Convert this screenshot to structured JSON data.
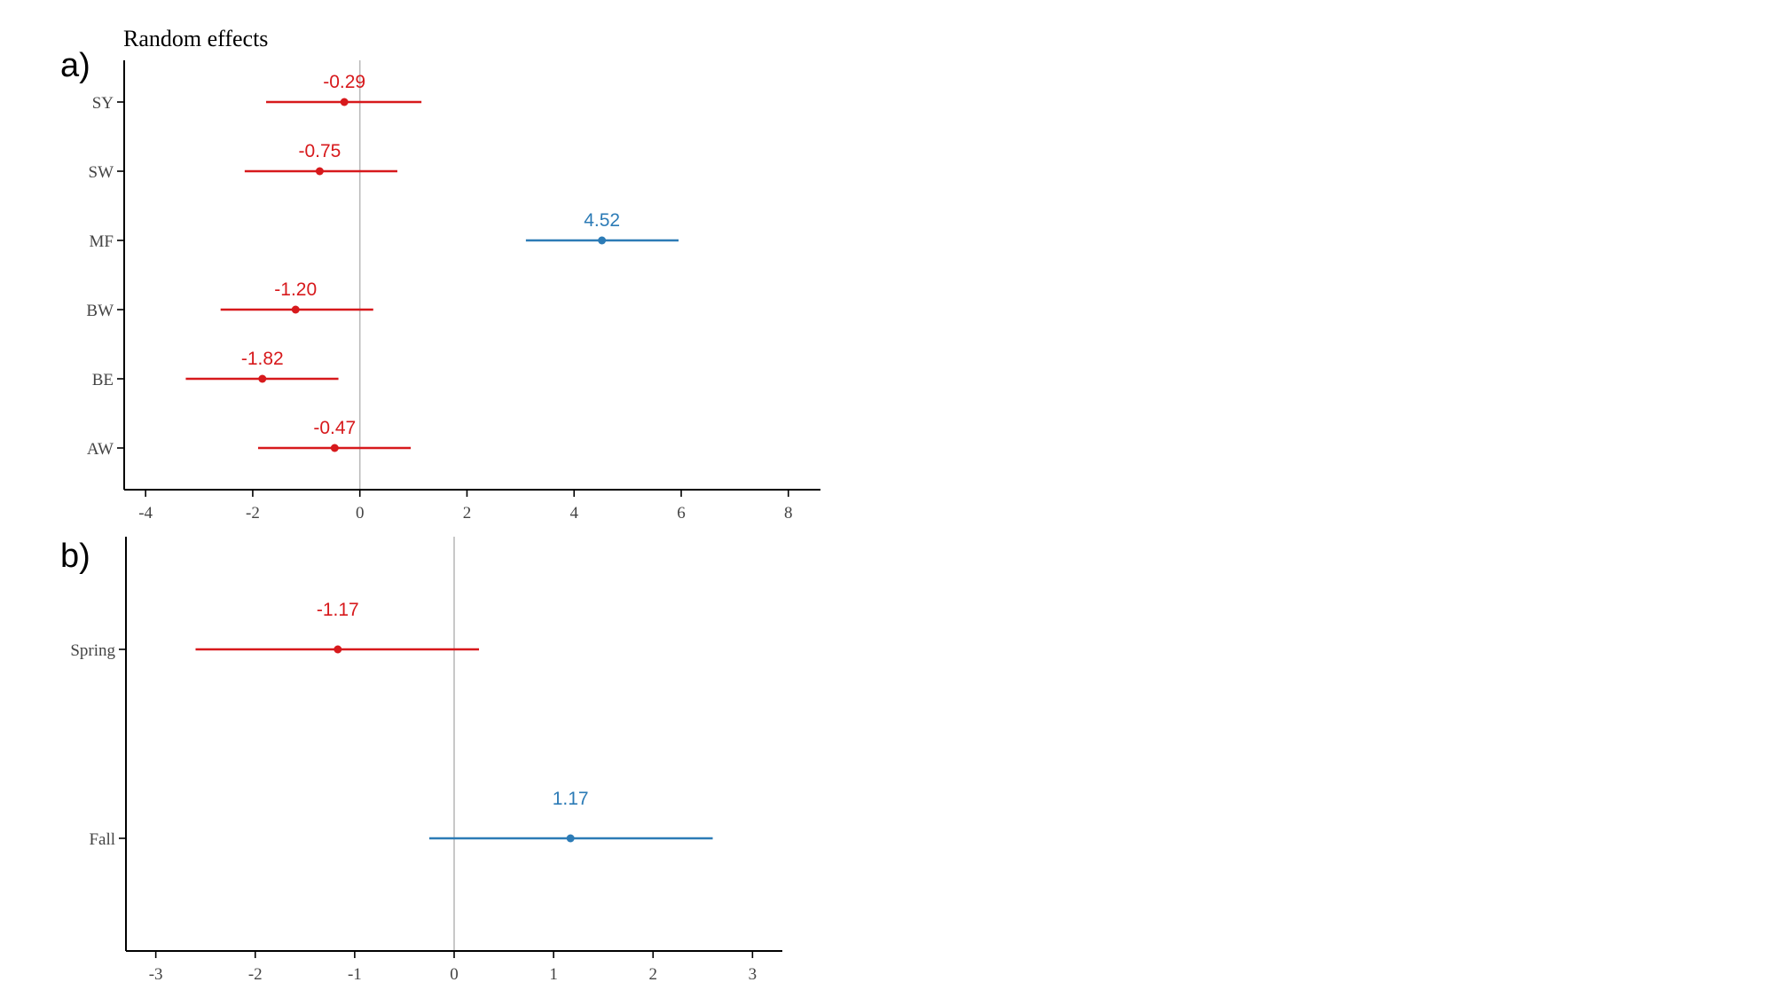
{
  "colors": {
    "negative": "#d7191c",
    "positive": "#2c7bb6",
    "axis": "#000000",
    "zero_line": "#bbbbbb",
    "tick_text": "#444444"
  },
  "chart_data": [
    {
      "panel_label": "a)",
      "title": "Random effects",
      "type": "forest",
      "categories": [
        "AW",
        "BE",
        "BW",
        "MF",
        "SW",
        "SY"
      ],
      "estimates": [
        -0.47,
        -1.82,
        -1.2,
        4.52,
        -0.75,
        -0.29
      ],
      "lower": [
        -1.9,
        -3.25,
        -2.6,
        3.1,
        -2.15,
        -1.75
      ],
      "upper": [
        0.95,
        -0.4,
        0.25,
        5.95,
        0.7,
        1.15
      ],
      "labels": [
        "-0.47",
        "-1.82",
        "-1.20",
        "4.52",
        "-0.75",
        "-0.29"
      ],
      "xlim": [
        -4.4,
        8.6
      ],
      "xticks": [
        -4,
        -2,
        0,
        2,
        4,
        6,
        8
      ],
      "xtick_labels": [
        "-4",
        "-2",
        "0",
        "2",
        "4",
        "6",
        "8"
      ],
      "reference_line": 0,
      "xlabel": "",
      "ylabel": "",
      "grid": false,
      "legend": "none"
    },
    {
      "panel_label": "b)",
      "title": "",
      "type": "forest",
      "categories": [
        "Fall",
        "Spring"
      ],
      "estimates": [
        1.17,
        -1.17
      ],
      "lower": [
        -0.25,
        -2.6
      ],
      "upper": [
        2.6,
        0.25
      ],
      "labels": [
        "1.17",
        "-1.17"
      ],
      "xlim": [
        -3.3,
        3.3
      ],
      "xticks": [
        -3,
        -2,
        -1,
        0,
        1,
        2,
        3
      ],
      "xtick_labels": [
        "-3",
        "-2",
        "-1",
        "0",
        "1",
        "2",
        "3"
      ],
      "reference_line": 0,
      "xlabel": "",
      "ylabel": "",
      "grid": false,
      "legend": "none"
    }
  ]
}
